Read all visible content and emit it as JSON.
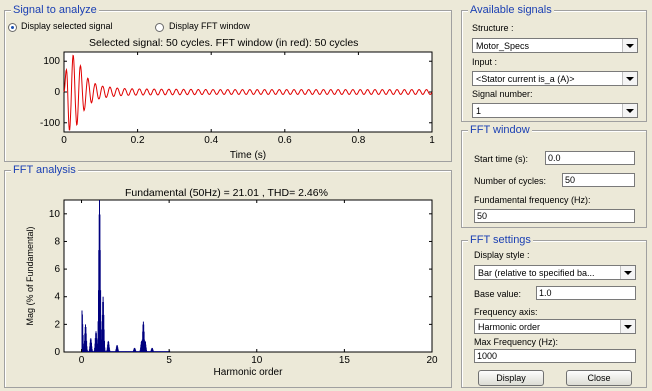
{
  "signal": {
    "title": "Signal to analyze",
    "radio_display_signal": "Display selected signal",
    "radio_display_fft": "Display FFT window",
    "plot_title": "Selected signal: 50 cycles. FFT window (in red): 50 cycles",
    "xlabel": "Time (s)",
    "x_ticks": [
      "0",
      "0.2",
      "0.4",
      "0.6",
      "0.8",
      "1"
    ],
    "y_ticks": [
      "100",
      "0",
      "-100"
    ]
  },
  "fft": {
    "title": "FFT analysis",
    "plot_title": "Fundamental (50Hz) = 21.01 , THD= 2.46%",
    "xlabel": "Harmonic order",
    "ylabel": "Mag (% of Fundamental)",
    "x_ticks": [
      "0",
      "5",
      "10",
      "15",
      "20"
    ],
    "y_ticks": [
      "10",
      "8",
      "6",
      "4",
      "2",
      "0"
    ]
  },
  "available": {
    "title": "Available signals",
    "structure_label": "Structure :",
    "structure_value": "Motor_Specs",
    "input_label": "Input :",
    "input_value": "<Stator current is_a (A)>",
    "signal_number_label": "Signal number:",
    "signal_number_value": "1"
  },
  "fft_window": {
    "title": "FFT window",
    "start_time_label": "Start time (s):",
    "start_time_value": "0.0",
    "cycles_label": "Number of cycles:",
    "cycles_value": "50",
    "fund_freq_label": "Fundamental frequency (Hz):",
    "fund_freq_value": "50"
  },
  "fft_settings": {
    "title": "FFT settings",
    "display_style_label": "Display style :",
    "display_style_value": "Bar (relative to specified ba...",
    "base_value_label": "Base value:",
    "base_value": "1.0",
    "freq_axis_label": "Frequency axis:",
    "freq_axis_value": "Harmonic order",
    "max_freq_label": "Max Frequency (Hz):",
    "max_freq_value": "1000"
  },
  "buttons": {
    "display": "Display",
    "close": "Close"
  },
  "colors": {
    "signal": "#e00000",
    "bars": "#00007f",
    "title": "#1a3fb3"
  },
  "chart_data": [
    {
      "type": "line",
      "title": "Selected signal: 50 cycles. FFT window (in red): 50 cycles",
      "xlabel": "Time (s)",
      "ylabel": "",
      "xlim": [
        0,
        1
      ],
      "ylim": [
        -130,
        130
      ],
      "series": [
        {
          "x": [
            0,
            0.01,
            0.02,
            0.03,
            0.04,
            0.05,
            0.06,
            0.08,
            0.1,
            0.15,
            0.2,
            0.4,
            0.6,
            0.8,
            1.0
          ],
          "y": [
            0,
            125,
            -125,
            115,
            -100,
            70,
            -50,
            30,
            -20,
            12,
            -10,
            8,
            -8,
            8,
            0
          ]
        }
      ]
    },
    {
      "type": "bar",
      "title": "Fundamental (50Hz) = 21.01 , THD= 2.46%",
      "xlabel": "Harmonic order",
      "ylabel": "Mag (% of Fundamental)",
      "xlim": [
        -1,
        20
      ],
      "ylim": [
        0,
        11
      ],
      "x": [
        0,
        0.2,
        0.5,
        0.8,
        1.0,
        1.2,
        1.5,
        2.0,
        3.0,
        3.4,
        3.5,
        3.6,
        4.0,
        5.0
      ],
      "values": [
        3.0,
        2.0,
        1.0,
        1.5,
        11.0,
        4.0,
        0.8,
        0.5,
        0.3,
        0.8,
        2.2,
        0.8,
        0.3,
        0.1
      ]
    }
  ]
}
